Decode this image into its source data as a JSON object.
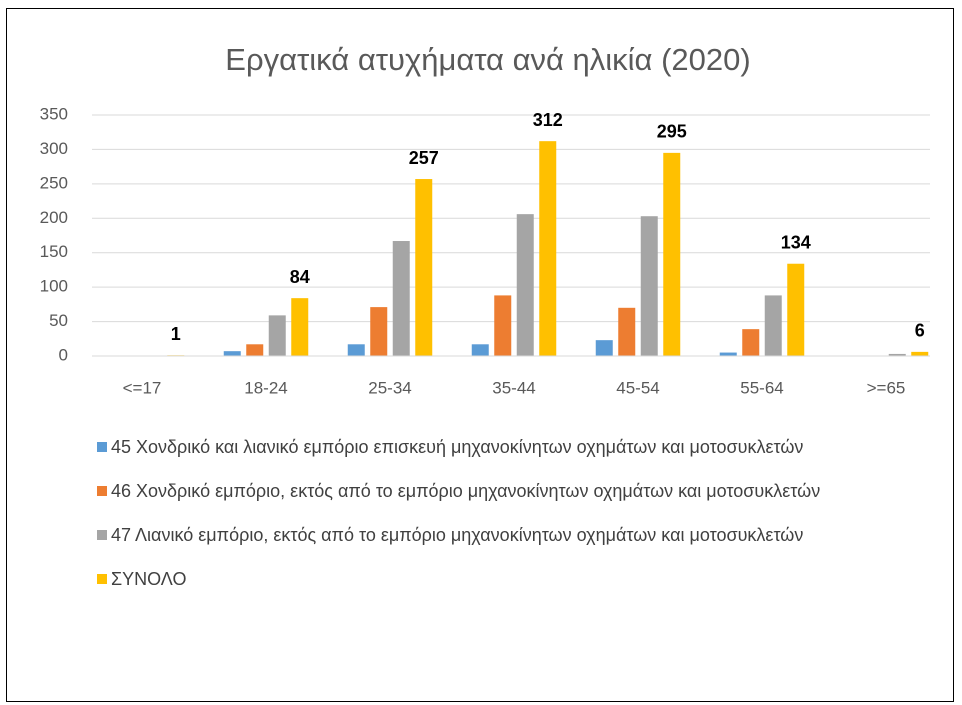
{
  "chart_data": {
    "type": "bar",
    "title": "Εργατικά ατυχήματα ανά ηλικία (2020)",
    "categories": [
      "<=17",
      "18-24",
      "25-34",
      "35-44",
      "45-54",
      "55-64",
      ">=65"
    ],
    "series": [
      {
        "name": "45 Χονδρικό και λιανικό εμπόριο επισκευή μηχανοκίνητων οχημάτων και μοτοσυκλετών",
        "color": "#5b9bd5",
        "values": [
          0,
          7,
          17,
          17,
          23,
          5,
          0
        ]
      },
      {
        "name": "46 Χονδρικό εμπόριο, εκτός από το εμπόριο μηχανοκίνητων οχημάτων και μοτοσυκλετών",
        "color": "#ed7d31",
        "values": [
          0,
          17,
          71,
          88,
          70,
          39,
          0
        ]
      },
      {
        "name": "47 Λιανικό εμπόριο, εκτός από το εμπόριο μηχανοκίνητων οχημάτων και μοτοσυκλετών",
        "color": "#a5a5a5",
        "values": [
          0,
          59,
          167,
          206,
          203,
          88,
          3
        ]
      },
      {
        "name": "ΣΥΝΟΛΟ",
        "color": "#ffc000",
        "values": [
          1,
          84,
          257,
          312,
          295,
          134,
          6
        ],
        "data_labels": true
      }
    ],
    "ylim": [
      0,
      350
    ],
    "yticks": [
      0,
      50,
      100,
      150,
      200,
      250,
      300,
      350
    ],
    "grid": true,
    "legend": "bottom"
  }
}
